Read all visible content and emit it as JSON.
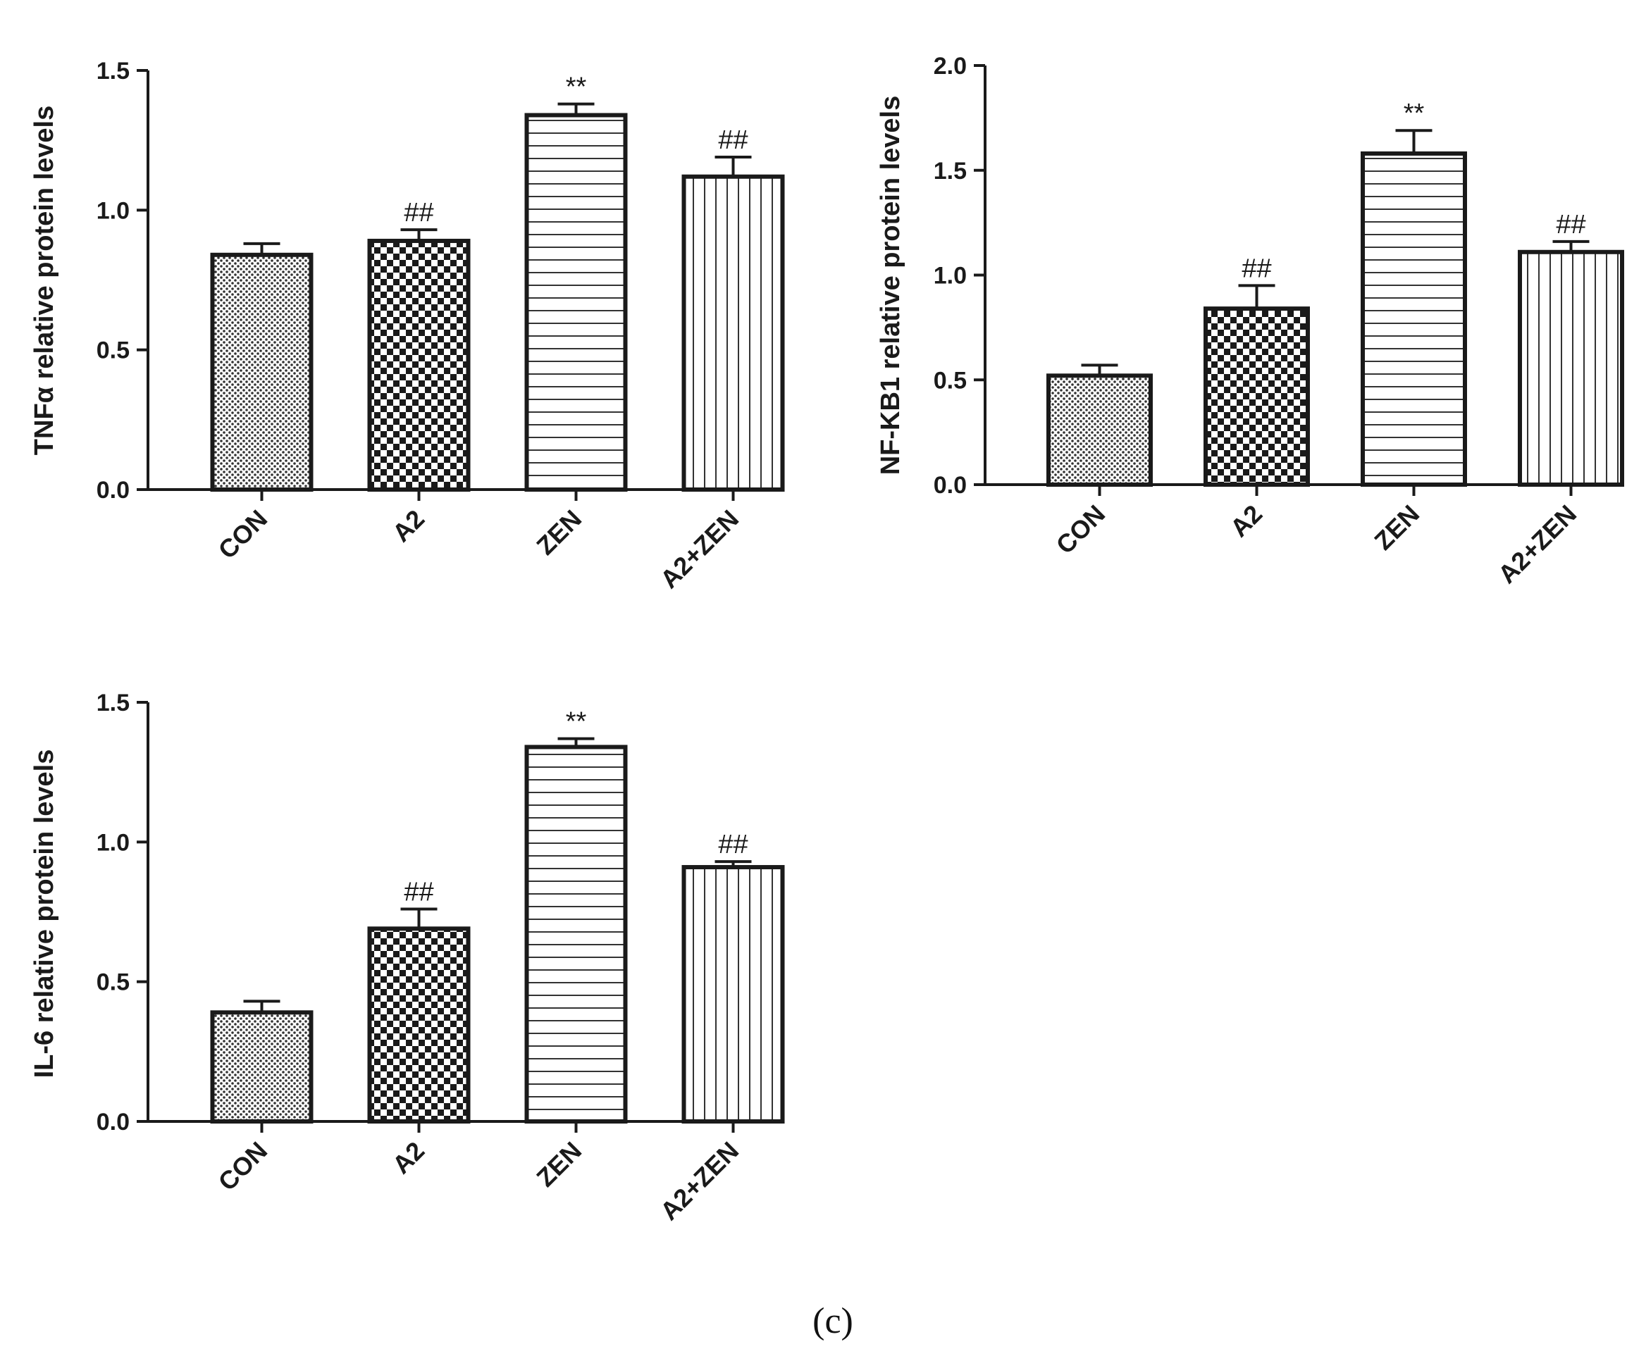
{
  "figure_label": "(c)",
  "chart_data": [
    {
      "type": "bar",
      "title": "",
      "ylabel": "TNFα relative protein levels",
      "xlabel": "",
      "categories": [
        "CON",
        "A2",
        "ZEN",
        "A2+ZEN"
      ],
      "values": [
        0.84,
        0.89,
        1.34,
        1.12
      ],
      "errors": [
        0.04,
        0.04,
        0.04,
        0.07
      ],
      "significance": [
        "",
        "##",
        "**",
        "##"
      ],
      "ylim": [
        0,
        1.5
      ],
      "yticks": [
        "0.0",
        "0.5",
        "1.0",
        "1.5"
      ],
      "ytick_values": [
        0,
        0.5,
        1.0,
        1.5
      ],
      "patterns": [
        "dots",
        "checker",
        "hlines",
        "vlines"
      ],
      "grid": false
    },
    {
      "type": "bar",
      "title": "",
      "ylabel": "NF-KB1 relative protein levels",
      "xlabel": "",
      "categories": [
        "CON",
        "A2",
        "ZEN",
        "A2+ZEN"
      ],
      "values": [
        0.52,
        0.84,
        1.58,
        1.11
      ],
      "errors": [
        0.05,
        0.11,
        0.11,
        0.05
      ],
      "significance": [
        "",
        "##",
        "**",
        "##"
      ],
      "ylim": [
        0,
        2.0
      ],
      "yticks": [
        "0.0",
        "0.5",
        "1.0",
        "1.5",
        "2.0"
      ],
      "ytick_values": [
        0,
        0.5,
        1.0,
        1.5,
        2.0
      ],
      "patterns": [
        "dots",
        "checker",
        "hlines",
        "vlines"
      ],
      "grid": false
    },
    {
      "type": "bar",
      "title": "",
      "ylabel": "IL-6 relative protein levels",
      "xlabel": "",
      "categories": [
        "CON",
        "A2",
        "ZEN",
        "A2+ZEN"
      ],
      "values": [
        0.39,
        0.69,
        1.34,
        0.91
      ],
      "errors": [
        0.04,
        0.07,
        0.03,
        0.02
      ],
      "significance": [
        "",
        "##",
        "**",
        "##"
      ],
      "ylim": [
        0,
        1.5
      ],
      "yticks": [
        "0.0",
        "0.5",
        "1.0",
        "1.5"
      ],
      "ytick_values": [
        0,
        0.5,
        1.0,
        1.5
      ],
      "patterns": [
        "dots",
        "checker",
        "hlines",
        "vlines"
      ],
      "grid": false
    }
  ]
}
